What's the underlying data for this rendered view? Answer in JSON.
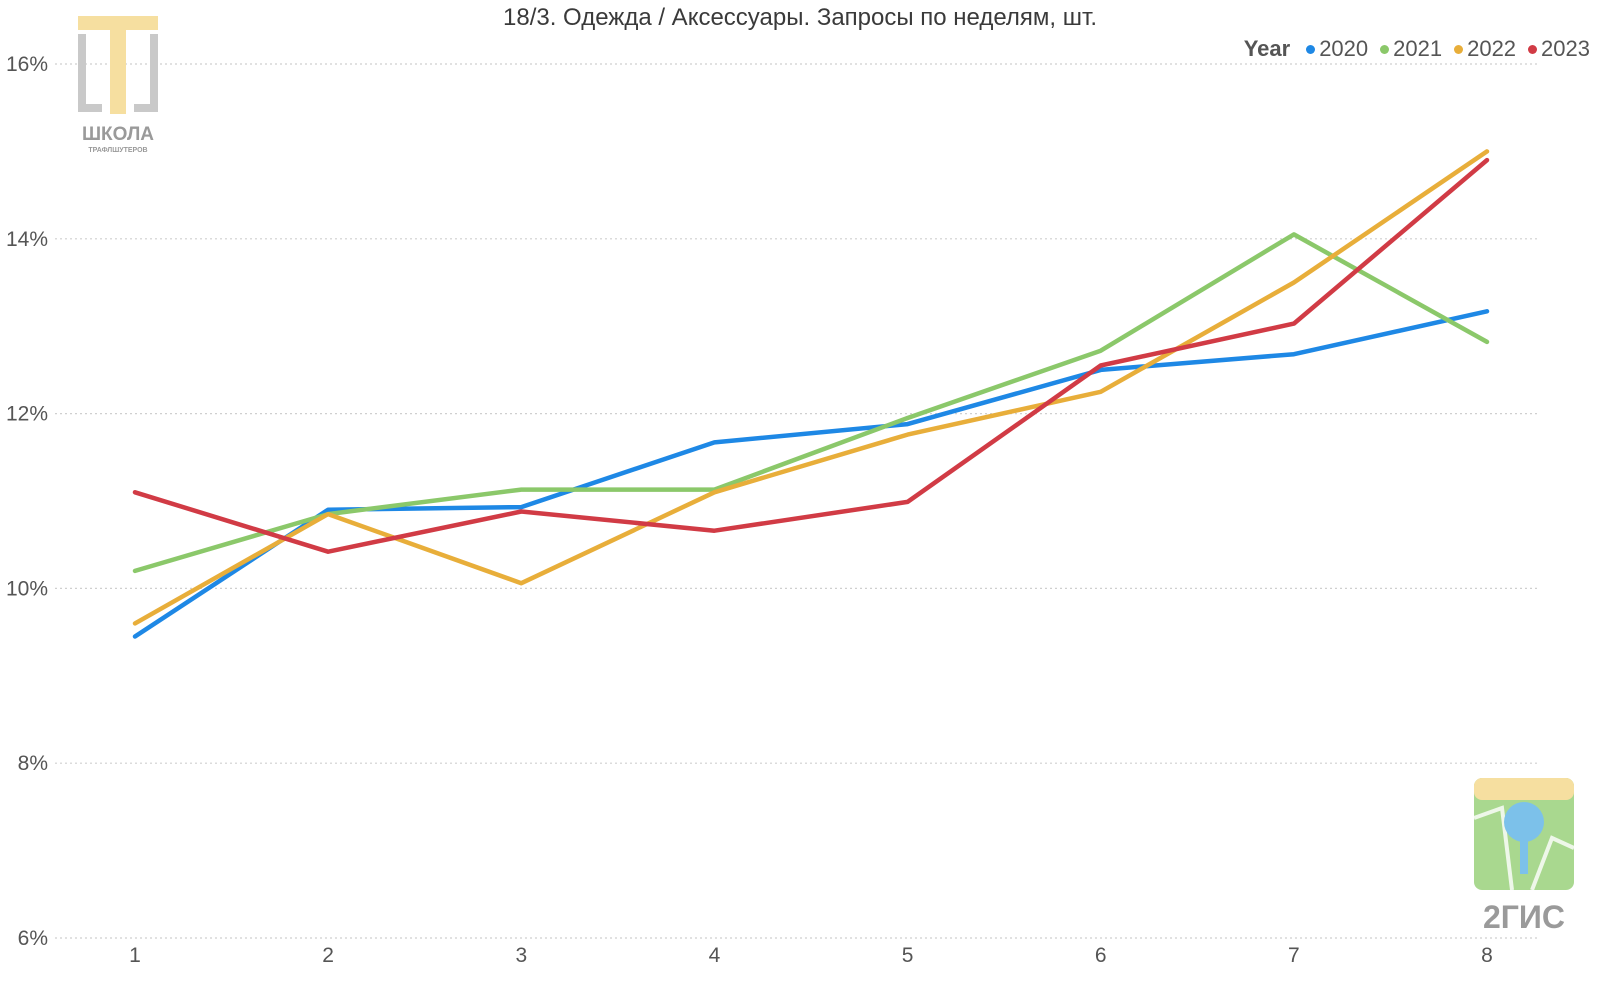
{
  "chart_data": {
    "type": "line",
    "title": "18/3. Одежда / Аксессуары. Запросы по неделям, шт.",
    "xlabel": "",
    "ylabel": "",
    "categories": [
      "1",
      "2",
      "3",
      "4",
      "5",
      "6",
      "7",
      "8"
    ],
    "y_ticks": [
      "6%",
      "8%",
      "10%",
      "12%",
      "14%",
      "16%"
    ],
    "ylim": [
      6,
      16.6
    ],
    "grid": true,
    "legend": {
      "title": "Year",
      "placement": "top-right"
    },
    "series": [
      {
        "name": "2020",
        "color": "#1e88e5",
        "values": [
          9.45,
          10.9,
          10.93,
          11.67,
          11.88,
          12.5,
          12.68,
          13.17
        ]
      },
      {
        "name": "2021",
        "color": "#8bc86a",
        "values": [
          10.2,
          10.85,
          11.13,
          11.13,
          11.95,
          12.72,
          14.05,
          12.82
        ]
      },
      {
        "name": "2022",
        "color": "#e8ae3a",
        "values": [
          9.6,
          10.85,
          10.06,
          11.1,
          11.76,
          12.25,
          13.5,
          15.0
        ]
      },
      {
        "name": "2023",
        "color": "#d13b45",
        "values": [
          11.1,
          10.42,
          10.88,
          10.66,
          10.99,
          12.55,
          13.03,
          14.9
        ]
      }
    ]
  },
  "logos": {
    "school": {
      "icon": "school-logo",
      "line1": "ШКОЛА",
      "line2": "ТРАФЛШУТЕРОВ"
    },
    "gis": {
      "icon": "2gis-logo",
      "text": "2ГИС"
    }
  }
}
